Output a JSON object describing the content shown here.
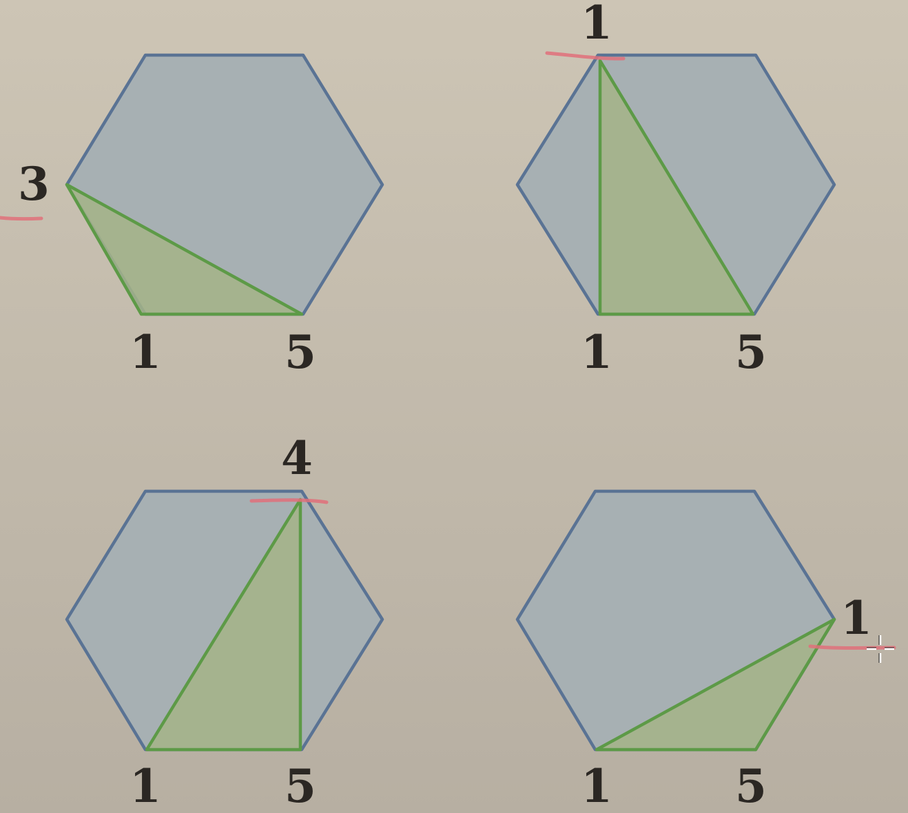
{
  "colors": {
    "background": "#c8c0b1",
    "hexagon_fill": "#a7b0b3",
    "hexagon_stroke": "#5a7394",
    "triangle_fill": "#a5b487",
    "triangle_stroke": "#5d9a47",
    "highlight_mark": "#e0707a",
    "label_text": "#2b2723"
  },
  "panels": [
    {
      "name": "top-left",
      "labels": {
        "left": "1",
        "right": "5",
        "apex": "3"
      }
    },
    {
      "name": "top-right",
      "labels": {
        "left": "1",
        "right": "5",
        "apex": "1"
      }
    },
    {
      "name": "bottom-left",
      "labels": {
        "left": "1",
        "right": "5",
        "apex": "4"
      }
    },
    {
      "name": "bottom-right",
      "labels": {
        "left": "1",
        "right": "5",
        "apex": "1"
      }
    }
  ]
}
